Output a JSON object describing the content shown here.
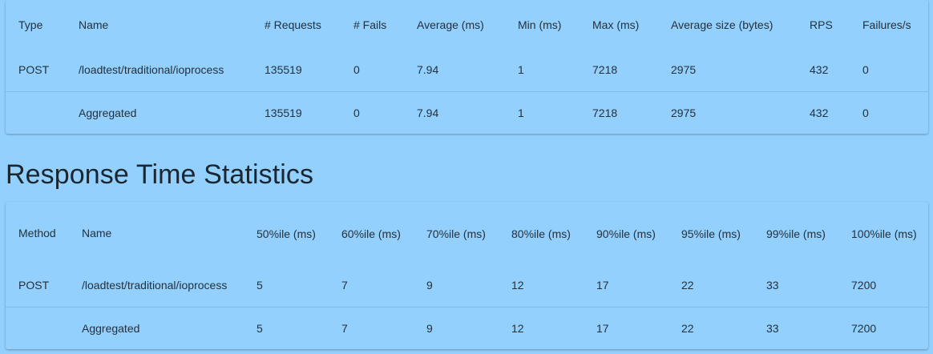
{
  "stats_table": {
    "headers": {
      "type": "Type",
      "name": "Name",
      "requests": "# Requests",
      "fails": "# Fails",
      "average": "Average (ms)",
      "min": "Min (ms)",
      "max": "Max (ms)",
      "avg_size": "Average size (bytes)",
      "rps": "RPS",
      "failures_s": "Failures/s"
    },
    "rows": [
      {
        "type": "POST",
        "name": "/loadtest/traditional/ioprocess",
        "requests": "135519",
        "fails": "0",
        "average": "7.94",
        "min": "1",
        "max": "7218",
        "avg_size": "2975",
        "rps": "432",
        "failures_s": "0"
      },
      {
        "type": "",
        "name": "Aggregated",
        "requests": "135519",
        "fails": "0",
        "average": "7.94",
        "min": "1",
        "max": "7218",
        "avg_size": "2975",
        "rps": "432",
        "failures_s": "0"
      }
    ]
  },
  "response_time": {
    "title": "Response Time Statistics",
    "headers": {
      "method": "Method",
      "name": "Name",
      "p50": "50%ile (ms)",
      "p60": "60%ile (ms)",
      "p70": "70%ile (ms)",
      "p80": "80%ile (ms)",
      "p90": "90%ile (ms)",
      "p95": "95%ile (ms)",
      "p99": "99%ile (ms)",
      "p100": "100%ile (ms)"
    },
    "rows": [
      {
        "method": "POST",
        "name": "/loadtest/traditional/ioprocess",
        "p50": "5",
        "p60": "7",
        "p70": "9",
        "p80": "12",
        "p90": "17",
        "p95": "22",
        "p99": "33",
        "p100": "7200"
      },
      {
        "method": "",
        "name": "Aggregated",
        "p50": "5",
        "p60": "7",
        "p70": "9",
        "p80": "12",
        "p90": "17",
        "p95": "22",
        "p99": "33",
        "p100": "7200"
      }
    ]
  },
  "colors": {
    "background": "#94d0fd",
    "divider": "#7fbde8",
    "text": "#23313c"
  }
}
